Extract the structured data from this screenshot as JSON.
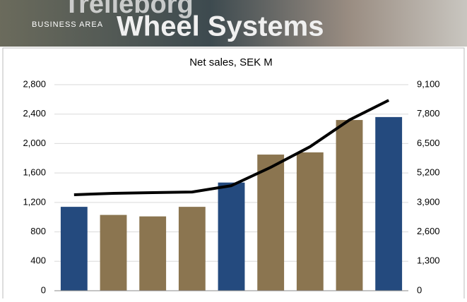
{
  "banner": {
    "brand": "Trelleborg",
    "area": "BUSINESS AREA",
    "name": "Wheel Systems"
  },
  "chart_data": {
    "type": "bar-line",
    "title": "Net sales, SEK M",
    "categories": [
      null,
      null,
      null,
      null,
      null,
      null,
      null,
      null,
      null
    ],
    "series": [
      {
        "type": "bar",
        "colors": [
          "#244a7e",
          "#8b7550",
          "#8b7550",
          "#8b7550",
          "#244a7e",
          "#8b7550",
          "#8b7550",
          "#8b7550",
          "#244a7e"
        ],
        "values": [
          1140,
          1030,
          1010,
          1140,
          1470,
          1850,
          1880,
          2320,
          2360
        ]
      },
      {
        "type": "line",
        "axis": "y2",
        "color": "#000000",
        "values": [
          4240,
          4300,
          4330,
          4360,
          4640,
          5450,
          6360,
          7540,
          8410
        ]
      }
    ],
    "ylim": [
      0,
      2800
    ],
    "yticks": [
      0,
      400,
      800,
      {
        "value": 1200,
        "label": "1,200"
      },
      {
        "value": 1600,
        "label": "1,600"
      },
      {
        "value": 2000,
        "label": "2,000"
      },
      {
        "value": 2400,
        "label": "2,400"
      },
      {
        "value": 2800,
        "label": "2,800"
      }
    ],
    "y2lim": [
      0,
      9100
    ],
    "y2ticks": [
      0,
      {
        "value": 1300,
        "label": "1,300"
      },
      {
        "value": 2600,
        "label": "2,600"
      },
      {
        "value": 3900,
        "label": "3,900"
      },
      {
        "value": 5200,
        "label": "5,200"
      },
      {
        "value": 6500,
        "label": "6,500"
      },
      {
        "value": 7800,
        "label": "7,800"
      },
      {
        "value": 9100,
        "label": "9,100"
      }
    ],
    "grid": true
  }
}
